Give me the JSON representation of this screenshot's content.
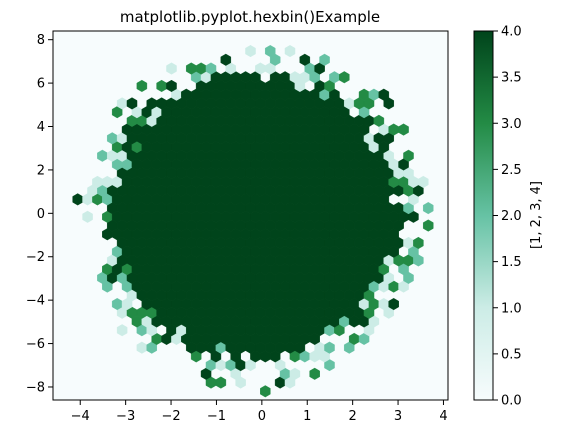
{
  "chart_data": {
    "type": "heatmap",
    "subtype": "hexbin",
    "title": "matplotlib.pyplot.hexbin()Example",
    "xlabel": "",
    "ylabel": "",
    "xlim": [
      -4.6,
      4.1
    ],
    "ylim": [
      -8.6,
      8.4
    ],
    "xticks": [
      -4,
      -3,
      -2,
      -1,
      0,
      1,
      2,
      3,
      4
    ],
    "yticks": [
      -8,
      -6,
      -4,
      -2,
      0,
      2,
      4,
      6,
      8
    ],
    "cmap": "Greens",
    "colors": {
      "c0": "#f7fcfd",
      "c1": "#ccece6",
      "c2": "#66c2a4",
      "c3": "#238b45",
      "c4": "#00441b"
    },
    "colorbar": {
      "label": "[1, 2, 3, 4]",
      "vmin": 0.0,
      "vmax": 4.0,
      "ticks": [
        "0.0",
        "0.5",
        "1.0",
        "1.5",
        "2.0",
        "2.5",
        "3.0",
        "3.5",
        "4.0"
      ]
    },
    "gridsize": 40,
    "distribution": {
      "center_x": -0.15,
      "center_y": -0.1,
      "core_radius_x": 3.0,
      "core_radius_y": 6.2,
      "fringe_width": 0.16,
      "core_value": 4,
      "outside_value": 0
    },
    "grid": false,
    "legend": "none"
  }
}
